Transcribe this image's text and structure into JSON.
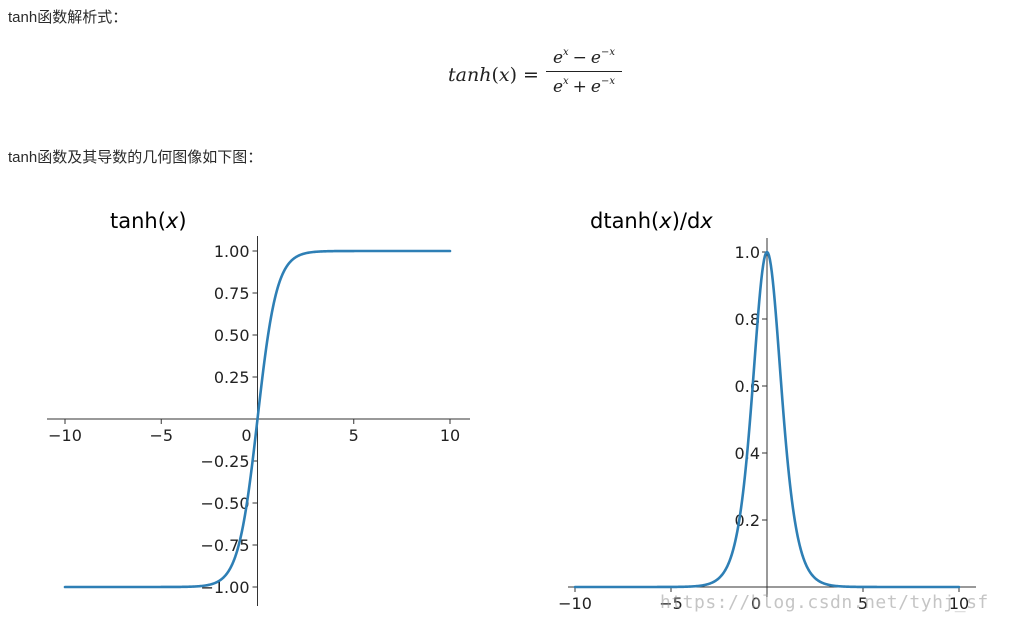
{
  "intro_text": "tanh函数解析式：",
  "formula": {
    "lhs_func": "tanh",
    "lhs_arg": "x",
    "equals": "=",
    "numerator": {
      "base1": "e",
      "exp1": "x",
      "op": "−",
      "base2": "e",
      "exp2": "−x"
    },
    "denominator": {
      "base1": "e",
      "exp1": "x",
      "op": "+",
      "base2": "e",
      "exp2": "−x"
    }
  },
  "graph_text": "tanh函数及其导数的几何图像如下图：",
  "line_color": "#2e7fb5",
  "watermark": "https://blog.csdn.net/tyhj_sf",
  "chart_data": [
    {
      "type": "line",
      "title_text": "tanh(",
      "title_var": "x",
      "title_close": ")",
      "function": "tanh",
      "xlim": [
        -10,
        10
      ],
      "ylim": [
        -1,
        1
      ],
      "x_ticks": [
        {
          "value": -10,
          "label": "−10"
        },
        {
          "value": -5,
          "label": "−5"
        },
        {
          "value": 0,
          "label": "0"
        },
        {
          "value": 5,
          "label": "5"
        },
        {
          "value": 10,
          "label": "10"
        }
      ],
      "y_ticks": [
        {
          "value": 1.0,
          "label": "1.00"
        },
        {
          "value": 0.75,
          "label": "0.75"
        },
        {
          "value": 0.5,
          "label": "0.50"
        },
        {
          "value": 0.25,
          "label": "0.25"
        },
        {
          "value": -0.25,
          "label": "−0.25"
        },
        {
          "value": -0.5,
          "label": "−0.50"
        },
        {
          "value": -0.75,
          "label": "−0.75"
        },
        {
          "value": -1.0,
          "label": "−1.00"
        }
      ],
      "spines": "center",
      "grid": false
    },
    {
      "type": "line",
      "title_text": "dtanh(",
      "title_var": "x",
      "title_close": ")/d",
      "title_var2": "x",
      "function": "1 - tanh(x)^2",
      "xlim": [
        -10,
        10
      ],
      "ylim": [
        0,
        1
      ],
      "x_ticks": [
        {
          "value": -10,
          "label": "−10"
        },
        {
          "value": -5,
          "label": "−5"
        },
        {
          "value": 0,
          "label": "0"
        },
        {
          "value": 5,
          "label": "5"
        },
        {
          "value": 10,
          "label": "10"
        }
      ],
      "y_ticks": [
        {
          "value": 1.0,
          "label": "1.0"
        },
        {
          "value": 0.8,
          "label": "0.8"
        },
        {
          "value": 0.6,
          "label": "0.6"
        },
        {
          "value": 0.4,
          "label": "0.4"
        },
        {
          "value": 0.2,
          "label": "0.2"
        }
      ],
      "spines": "center",
      "grid": false
    }
  ]
}
